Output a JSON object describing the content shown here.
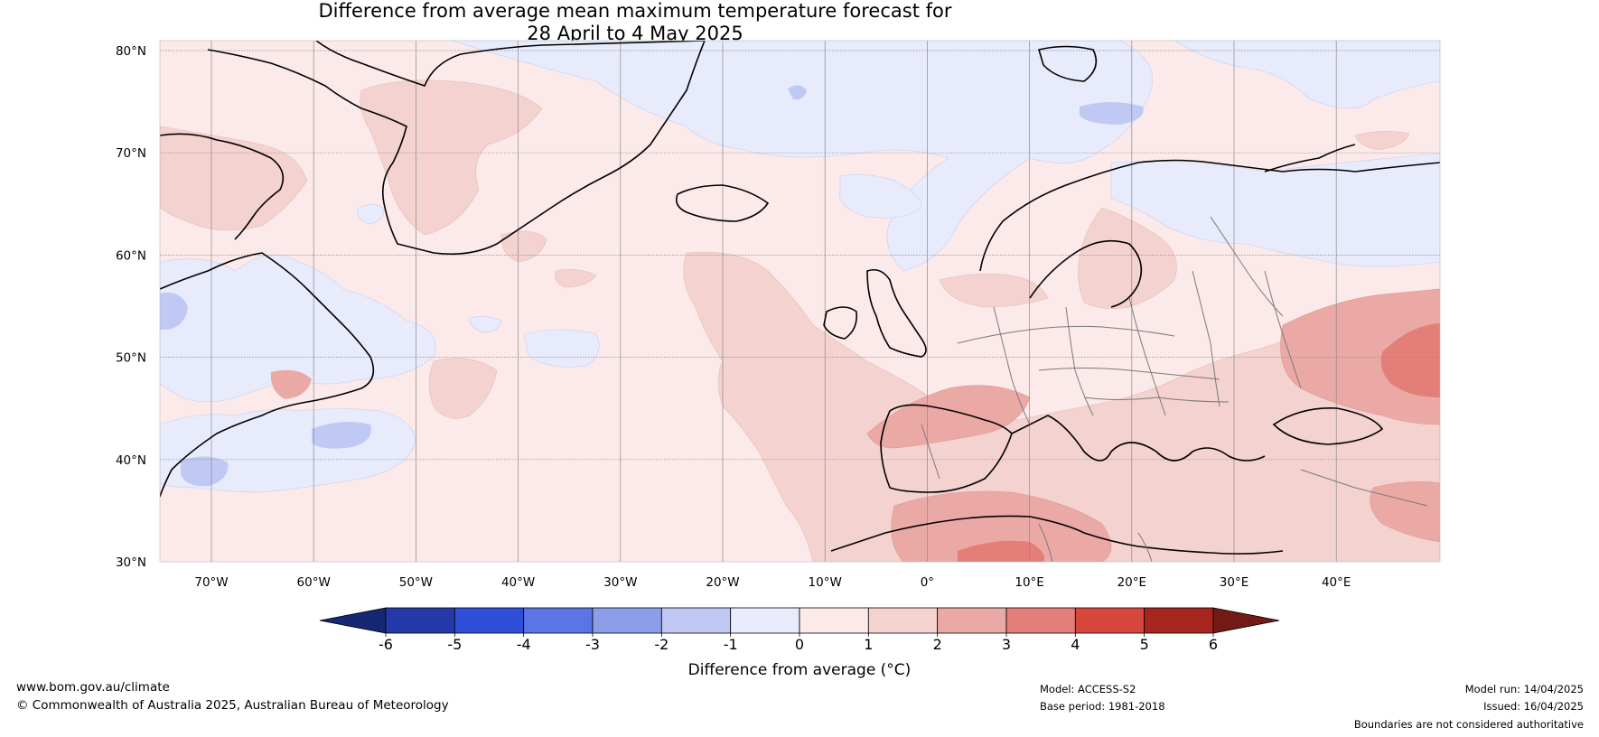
{
  "title_line1": "Difference from average mean maximum temperature forecast for",
  "title_line2": "28 April to 4 May 2025",
  "lat_labels": [
    "80°N",
    "70°N",
    "60°N",
    "50°N",
    "40°N",
    "30°N"
  ],
  "lon_labels": [
    "70°W",
    "60°W",
    "50°W",
    "40°W",
    "30°W",
    "20°W",
    "10°W",
    "0°",
    "10°E",
    "20°E",
    "30°E",
    "40°E"
  ],
  "colorbar": {
    "label": "Difference from average (°C)",
    "ticks": [
      "-6",
      "-5",
      "-4",
      "-3",
      "-2",
      "-1",
      "0",
      "1",
      "2",
      "3",
      "4",
      "5",
      "6"
    ],
    "colors": [
      "#2539a8",
      "#2f4fd8",
      "#5c74e4",
      "#8c9eea",
      "#c0c9f3",
      "#e8ebfb",
      "#fbeae9",
      "#f3d2d0",
      "#eba9a5",
      "#e37e78",
      "#d8473d",
      "#a7251f"
    ],
    "under_color": "#162773",
    "over_color": "#741a16"
  },
  "footer": {
    "website": "www.bom.gov.au/climate",
    "copyright": "© Commonwealth of Australia 2025, Australian Bureau of Meteorology",
    "model": "Model: ACCESS-S2",
    "base_period": "Base period: 1981-2018",
    "model_run": "Model run: 14/04/2025",
    "issued": "Issued: 16/04/2025",
    "disclaimer": "Boundaries are not considered authoritative"
  }
}
